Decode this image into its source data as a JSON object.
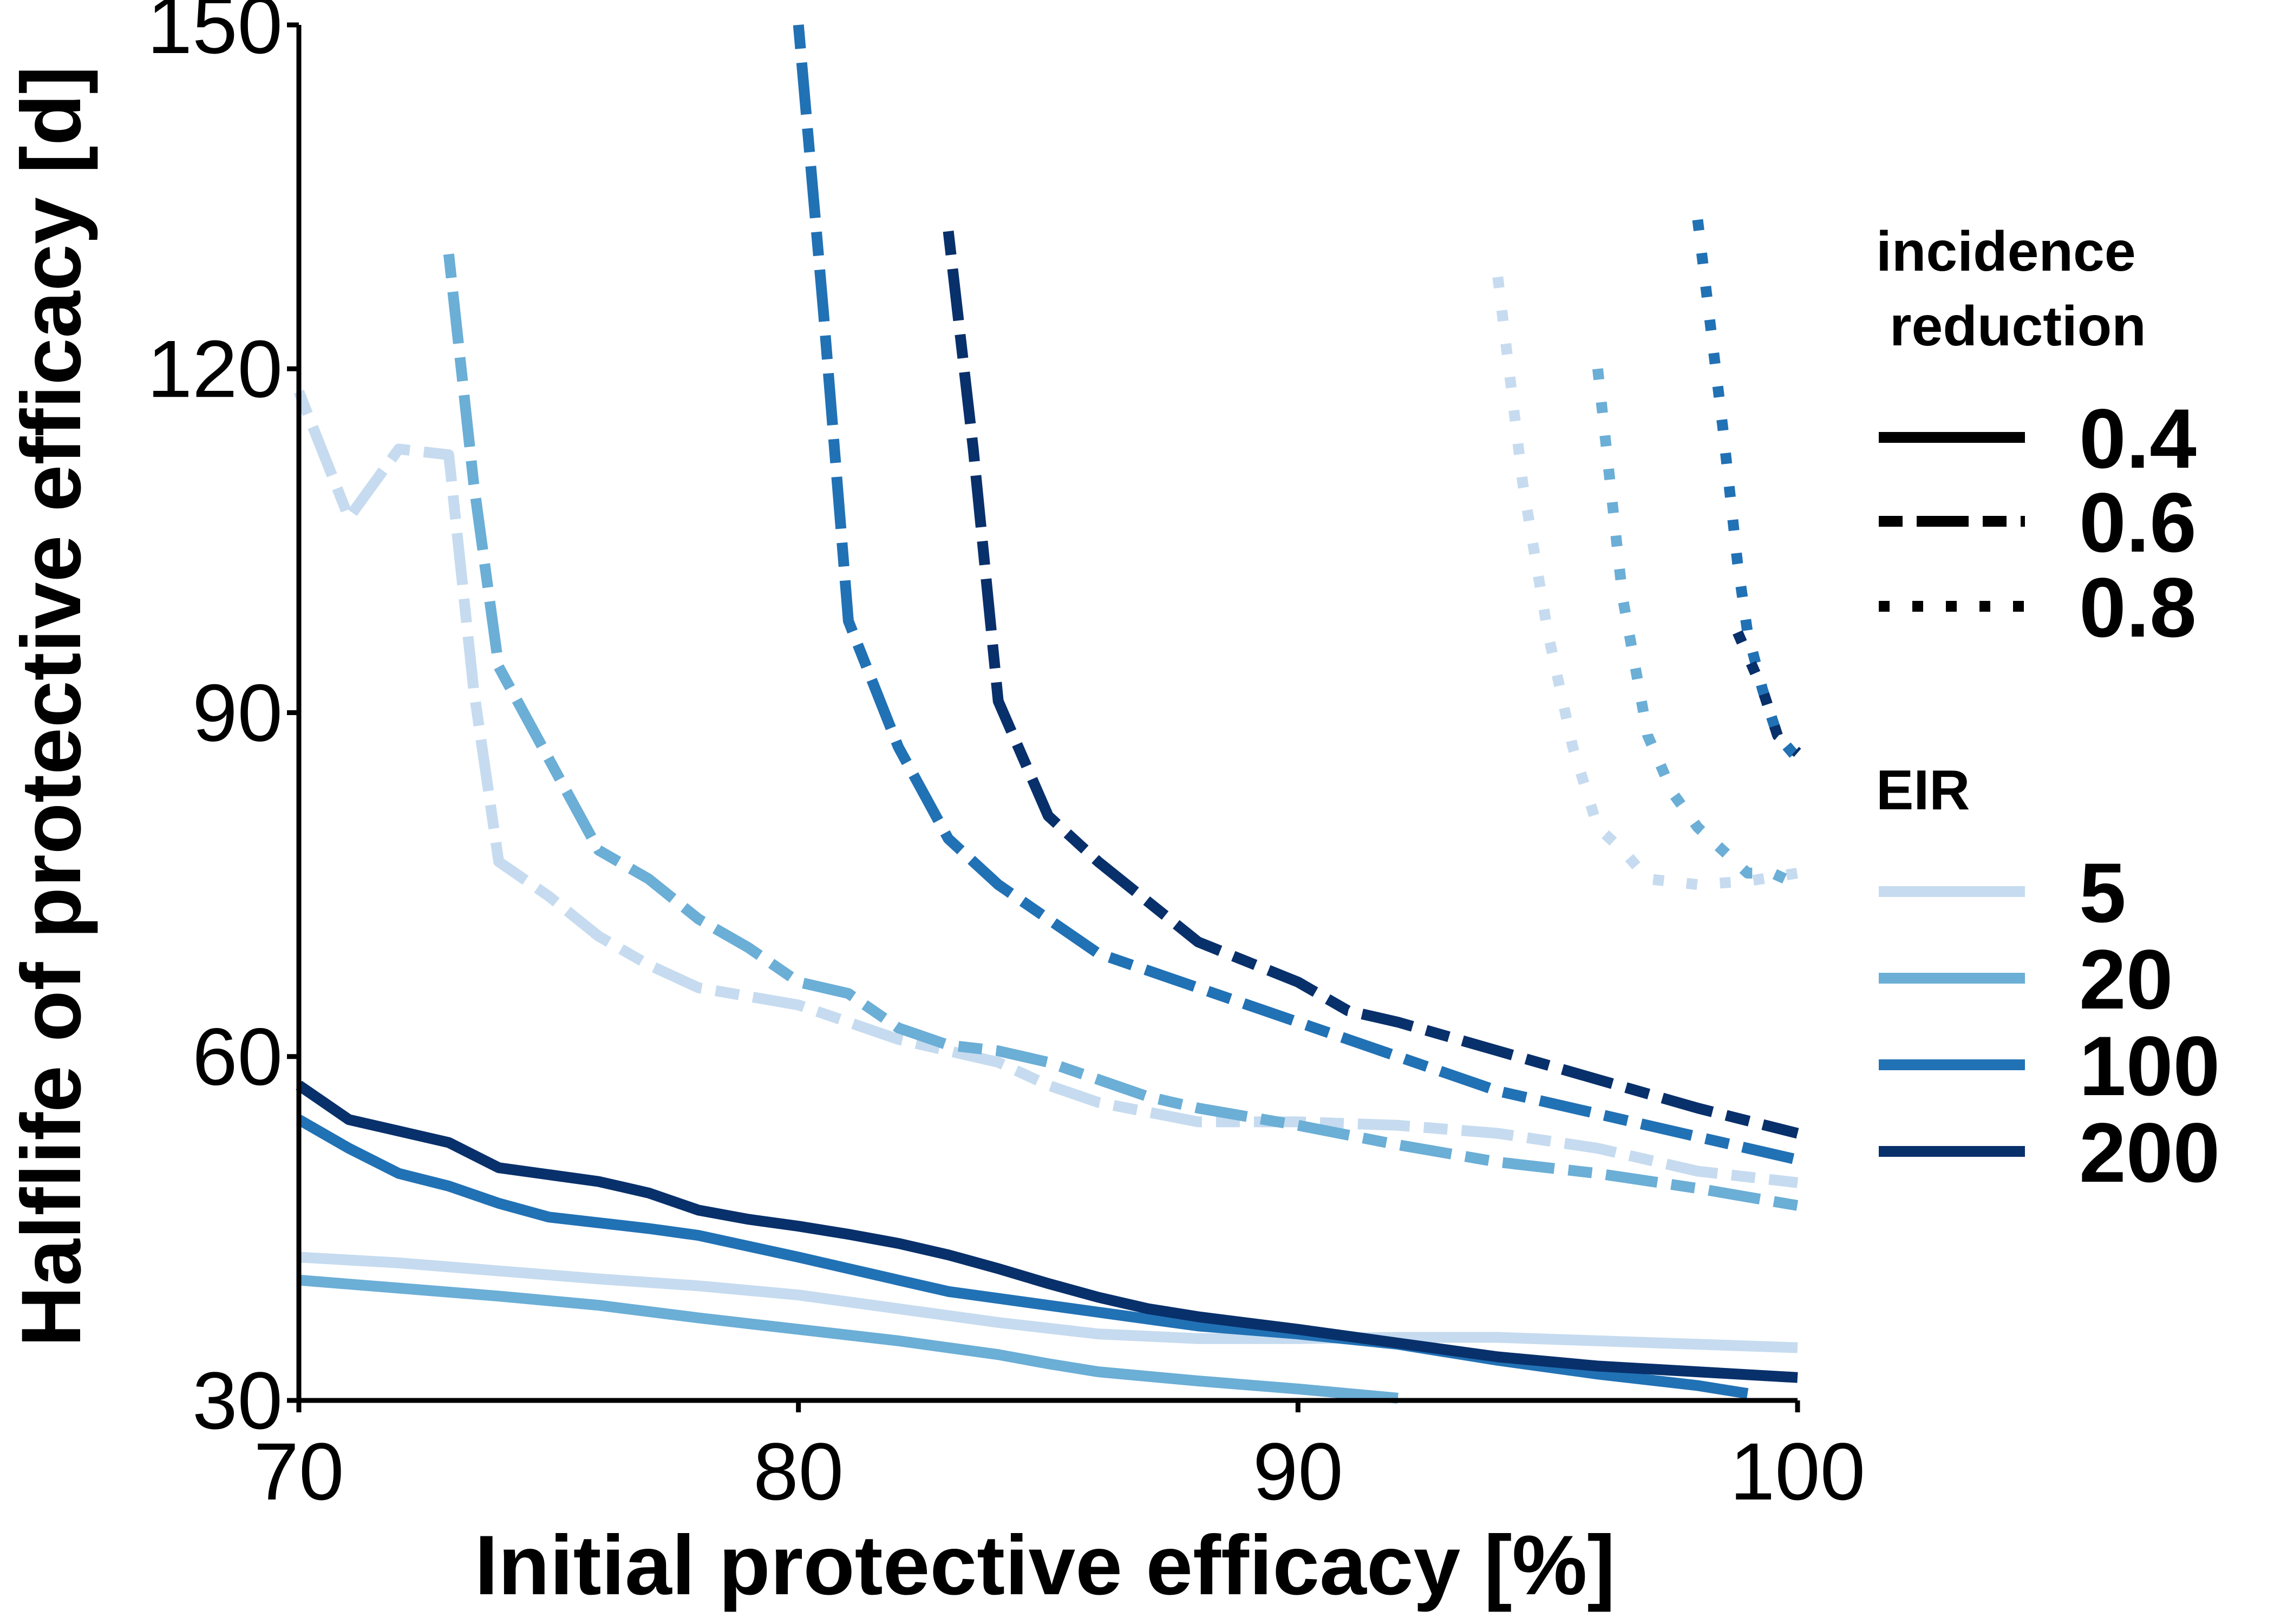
{
  "chart_data": {
    "type": "line",
    "xlabel": "Initial protective efficacy [%]",
    "ylabel": "Halflife of protective efficacy [d]",
    "xlim": [
      70,
      100
    ],
    "ylim": [
      30,
      150
    ],
    "xticks": [
      "70",
      "80",
      "90",
      "100"
    ],
    "yticks": [
      "30",
      "60",
      "90",
      "120",
      "150"
    ],
    "grid": false,
    "legend_position": "right",
    "linetype_legend": {
      "title_line1": "incidence",
      "title_line2": "reduction",
      "entries": [
        {
          "label": "0.4",
          "linetype": "solid"
        },
        {
          "label": "0.6",
          "linetype": "longdash"
        },
        {
          "label": "0.8",
          "linetype": "dotted"
        }
      ]
    },
    "color_legend": {
      "title": "EIR",
      "entries": [
        {
          "label": "5",
          "color": "#c6dbef"
        },
        {
          "label": "20",
          "color": "#6baed6"
        },
        {
          "label": "100",
          "color": "#2171b5"
        },
        {
          "label": "200",
          "color": "#08306b"
        }
      ]
    },
    "series": [
      {
        "eir": "5",
        "reduction": "0.4",
        "color": "#c6dbef",
        "linetype": "solid",
        "points": [
          [
            70,
            42.5
          ],
          [
            72,
            42
          ],
          [
            74,
            41.3
          ],
          [
            76,
            40.6
          ],
          [
            78,
            40
          ],
          [
            80,
            39.2
          ],
          [
            82,
            38
          ],
          [
            84,
            36.8
          ],
          [
            86,
            35.8
          ],
          [
            88,
            35.4
          ],
          [
            90,
            35.4
          ],
          [
            92,
            35.5
          ],
          [
            94,
            35.5
          ],
          [
            96,
            35.2
          ],
          [
            98,
            34.9
          ],
          [
            100,
            34.6
          ]
        ]
      },
      {
        "eir": "20",
        "reduction": "0.4",
        "color": "#6baed6",
        "linetype": "solid",
        "points": [
          [
            70,
            40.5
          ],
          [
            72,
            39.8
          ],
          [
            74,
            39.1
          ],
          [
            76,
            38.3
          ],
          [
            78,
            37.2
          ],
          [
            80,
            36.2
          ],
          [
            82,
            35.2
          ],
          [
            84,
            34
          ],
          [
            85,
            33.2
          ],
          [
            86,
            32.5
          ],
          [
            88,
            31.7
          ],
          [
            90,
            31
          ],
          [
            92,
            30.2
          ]
        ]
      },
      {
        "eir": "100",
        "reduction": "0.4",
        "color": "#2171b5",
        "linetype": "solid",
        "points": [
          [
            70,
            54.5
          ],
          [
            71,
            52
          ],
          [
            72,
            49.8
          ],
          [
            73,
            48.7
          ],
          [
            74,
            47.2
          ],
          [
            75,
            46
          ],
          [
            76,
            45.5
          ],
          [
            77,
            45
          ],
          [
            78,
            44.4
          ],
          [
            80,
            42.5
          ],
          [
            82,
            40.5
          ],
          [
            83,
            39.5
          ],
          [
            84,
            38.9
          ],
          [
            86,
            37.7
          ],
          [
            88,
            36.5
          ],
          [
            90,
            35.8
          ],
          [
            92,
            34.9
          ],
          [
            94,
            33.5
          ],
          [
            96,
            32.3
          ],
          [
            98,
            31.3
          ],
          [
            99,
            30.6
          ]
        ]
      },
      {
        "eir": "200",
        "reduction": "0.4",
        "color": "#08306b",
        "linetype": "solid",
        "points": [
          [
            70,
            57.5
          ],
          [
            71,
            54.5
          ],
          [
            72,
            53.5
          ],
          [
            73,
            52.5
          ],
          [
            74,
            50.3
          ],
          [
            75,
            49.7
          ],
          [
            76,
            49.1
          ],
          [
            77,
            48.1
          ],
          [
            78,
            46.6
          ],
          [
            79,
            45.8
          ],
          [
            80,
            45.2
          ],
          [
            81,
            44.5
          ],
          [
            82,
            43.7
          ],
          [
            83,
            42.7
          ],
          [
            84,
            41.5
          ],
          [
            85,
            40.2
          ],
          [
            86,
            39
          ],
          [
            87,
            38
          ],
          [
            88,
            37.3
          ],
          [
            90,
            36.2
          ],
          [
            92,
            35
          ],
          [
            94,
            33.8
          ],
          [
            96,
            33
          ],
          [
            98,
            32.5
          ],
          [
            100,
            32
          ]
        ]
      },
      {
        "eir": "5",
        "reduction": "0.6",
        "color": "#c6dbef",
        "linetype": "longdash",
        "points": [
          [
            70,
            118
          ],
          [
            71,
            107
          ],
          [
            72,
            113
          ],
          [
            73,
            112.5
          ],
          [
            73.5,
            92
          ],
          [
            74,
            77
          ],
          [
            75,
            74
          ],
          [
            76,
            70.5
          ],
          [
            77,
            68
          ],
          [
            78,
            66
          ],
          [
            80,
            64.5
          ],
          [
            82,
            61.5
          ],
          [
            84,
            59.5
          ],
          [
            85,
            57.5
          ],
          [
            86,
            56
          ],
          [
            88,
            54.3
          ],
          [
            90,
            54.3
          ],
          [
            92,
            54
          ],
          [
            94,
            53.3
          ],
          [
            96,
            52
          ],
          [
            98,
            50
          ],
          [
            100,
            49
          ]
        ]
      },
      {
        "eir": "20",
        "reduction": "0.6",
        "color": "#6baed6",
        "linetype": "longdash",
        "points": [
          [
            73,
            130
          ],
          [
            73.5,
            110
          ],
          [
            74,
            94
          ],
          [
            75,
            86
          ],
          [
            76,
            78
          ],
          [
            77,
            75.5
          ],
          [
            78,
            72
          ],
          [
            79,
            69.5
          ],
          [
            80,
            66.5
          ],
          [
            81,
            65.5
          ],
          [
            82,
            62.5
          ],
          [
            83,
            61
          ],
          [
            84,
            60.5
          ],
          [
            85,
            59.5
          ],
          [
            86,
            58
          ],
          [
            87,
            56.5
          ],
          [
            88,
            55.5
          ],
          [
            90,
            54
          ],
          [
            92,
            52.3
          ],
          [
            94,
            50.8
          ],
          [
            96,
            49.8
          ],
          [
            98,
            48.5
          ],
          [
            100,
            47
          ]
        ]
      },
      {
        "eir": "100",
        "reduction": "0.6",
        "color": "#2171b5",
        "linetype": "longdash",
        "points": [
          [
            80,
            150
          ],
          [
            80.5,
            125
          ],
          [
            81,
            98
          ],
          [
            82,
            87
          ],
          [
            83,
            79
          ],
          [
            84,
            75
          ],
          [
            85,
            72
          ],
          [
            86,
            69
          ],
          [
            88,
            66
          ],
          [
            90,
            63
          ],
          [
            92,
            60
          ],
          [
            94,
            57
          ],
          [
            96,
            55
          ],
          [
            98,
            53
          ],
          [
            100,
            51
          ]
        ]
      },
      {
        "eir": "200",
        "reduction": "0.6",
        "color": "#08306b",
        "linetype": "longdash",
        "points": [
          [
            83,
            132
          ],
          [
            83.5,
            113
          ],
          [
            84,
            91
          ],
          [
            85,
            81
          ],
          [
            86,
            77
          ],
          [
            87,
            73.5
          ],
          [
            88,
            70
          ],
          [
            90,
            66.5
          ],
          [
            91,
            64
          ],
          [
            92,
            63
          ],
          [
            94,
            60.5
          ],
          [
            96,
            58
          ],
          [
            98,
            55.5
          ],
          [
            100,
            53.3
          ]
        ]
      },
      {
        "eir": "5",
        "reduction": "0.8",
        "color": "#c6dbef",
        "linetype": "dotted",
        "points": [
          [
            94,
            128
          ],
          [
            94.5,
            110
          ],
          [
            95,
            97
          ],
          [
            95.5,
            87
          ],
          [
            96,
            80
          ],
          [
            96.5,
            78
          ],
          [
            97,
            75.5
          ],
          [
            98,
            75
          ],
          [
            99,
            75.3
          ],
          [
            100,
            76
          ]
        ]
      },
      {
        "eir": "20",
        "reduction": "0.8",
        "color": "#6baed6",
        "linetype": "dotted",
        "points": [
          [
            96,
            120
          ],
          [
            96.5,
            100
          ],
          [
            97,
            88
          ],
          [
            97.5,
            83
          ],
          [
            98,
            80
          ],
          [
            98.5,
            78
          ],
          [
            99,
            76
          ],
          [
            99.5,
            76
          ],
          [
            100,
            75
          ]
        ]
      },
      {
        "eir": "100",
        "reduction": "0.8",
        "color": "#2171b5",
        "linetype": "dotted",
        "points": [
          [
            98,
            133
          ],
          [
            98.5,
            115
          ],
          [
            98.8,
            103
          ],
          [
            99,
            97
          ],
          [
            99.3,
            92
          ],
          [
            99.6,
            88
          ],
          [
            100,
            86
          ]
        ]
      },
      {
        "eir": "200",
        "reduction": "0.8",
        "color": "#08306b",
        "linetype": "dotted",
        "points": [
          [
            98.8,
            97
          ],
          [
            99.3,
            92
          ],
          [
            99.6,
            88
          ],
          [
            100,
            86.5
          ]
        ]
      }
    ]
  }
}
